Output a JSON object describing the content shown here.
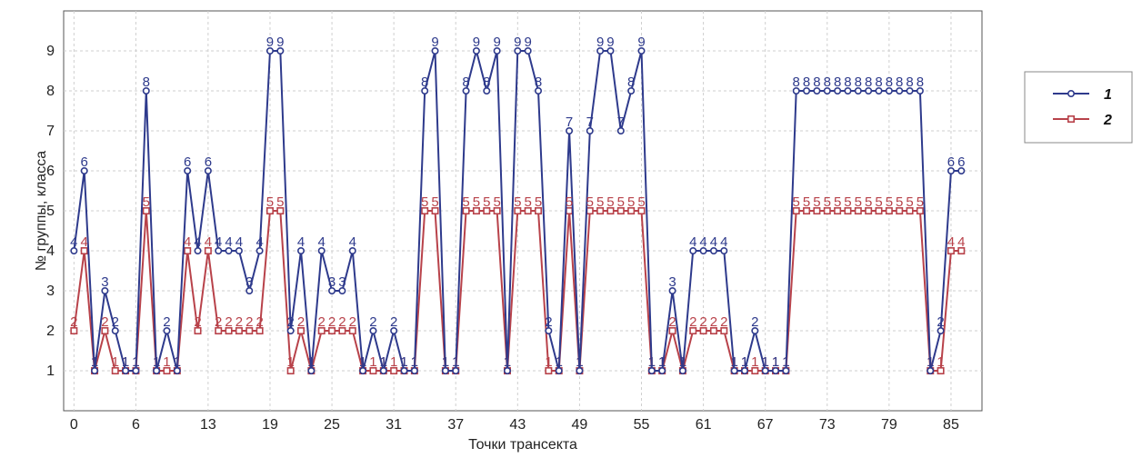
{
  "chart_data": {
    "type": "line",
    "title": "",
    "xlabel": "Точки трансекта",
    "ylabel": "№ группы, класса",
    "xlim": [
      -1,
      88
    ],
    "ylim": [
      0,
      10
    ],
    "x_ticks": [
      0,
      6,
      13,
      19,
      25,
      31,
      37,
      43,
      49,
      55,
      61,
      67,
      73,
      79,
      85
    ],
    "y_ticks": [
      1,
      2,
      3,
      4,
      5,
      6,
      7,
      8,
      9
    ],
    "grid": true,
    "legend_position": "right",
    "x": [
      0,
      1,
      2,
      3,
      4,
      5,
      6,
      7,
      8,
      9,
      10,
      11,
      12,
      13,
      14,
      15,
      16,
      17,
      18,
      19,
      20,
      21,
      22,
      23,
      24,
      25,
      26,
      27,
      28,
      29,
      30,
      31,
      32,
      33,
      34,
      35,
      36,
      37,
      38,
      39,
      40,
      41,
      42,
      43,
      44,
      45,
      46,
      47,
      48,
      49,
      50,
      51,
      52,
      53,
      54,
      55,
      56,
      57,
      58,
      59,
      60,
      61,
      62,
      63,
      64,
      65,
      66,
      67,
      68,
      69,
      70,
      71,
      72,
      73,
      74,
      75,
      76,
      77,
      78,
      79,
      80,
      81,
      82,
      83,
      84,
      85,
      86
    ],
    "series": [
      {
        "name": "1",
        "color": "#2e3a8c",
        "values": [
          4,
          6,
          1,
          3,
          2,
          1,
          1,
          8,
          1,
          2,
          1,
          6,
          4,
          6,
          4,
          4,
          4,
          3,
          4,
          9,
          9,
          2,
          4,
          1,
          4,
          3,
          3,
          4,
          1,
          2,
          1,
          2,
          1,
          1,
          8,
          9,
          1,
          1,
          8,
          9,
          8,
          9,
          1,
          9,
          9,
          8,
          2,
          1,
          7,
          1,
          7,
          9,
          9,
          7,
          8,
          9,
          1,
          1,
          3,
          1,
          4,
          4,
          4,
          4,
          1,
          1,
          2,
          1,
          1,
          1,
          8,
          8,
          8,
          8,
          8,
          8,
          8,
          8,
          8,
          8,
          8,
          8,
          8,
          1,
          2,
          6,
          6
        ]
      },
      {
        "name": "2",
        "color": "#b8424a",
        "values": [
          2,
          4,
          1,
          2,
          1,
          1,
          1,
          5,
          1,
          1,
          1,
          4,
          2,
          4,
          2,
          2,
          2,
          2,
          2,
          5,
          5,
          1,
          2,
          1,
          2,
          2,
          2,
          2,
          1,
          1,
          1,
          1,
          1,
          1,
          5,
          5,
          1,
          1,
          5,
          5,
          5,
          5,
          1,
          5,
          5,
          5,
          1,
          1,
          5,
          1,
          5,
          5,
          5,
          5,
          5,
          5,
          1,
          1,
          2,
          1,
          2,
          2,
          2,
          2,
          1,
          1,
          1,
          1,
          1,
          1,
          5,
          5,
          5,
          5,
          5,
          5,
          5,
          5,
          5,
          5,
          5,
          5,
          5,
          1,
          1,
          4,
          4
        ]
      }
    ]
  }
}
